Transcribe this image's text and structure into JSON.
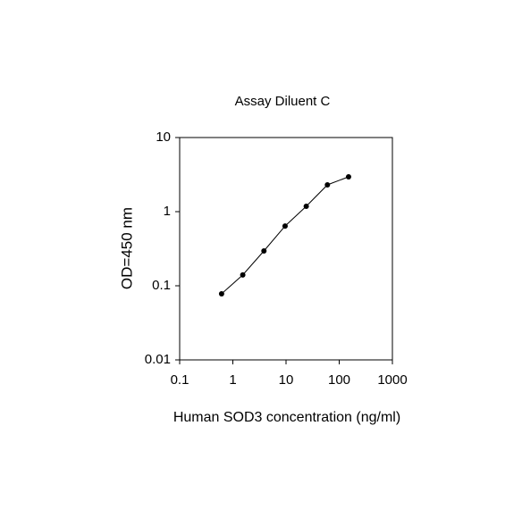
{
  "chart_data": {
    "type": "line",
    "title": "Assay Diluent C",
    "x_label": "Human SOD3 concentration (ng/ml)",
    "y_label": "OD=450 nm",
    "x": [
      0.614,
      1.536,
      3.84,
      9.6,
      24,
      60,
      150
    ],
    "series": [
      {
        "name": "OD",
        "color": "#000000",
        "values": [
          0.078,
          0.14,
          0.295,
          0.64,
          1.18,
          2.3,
          2.95
        ]
      }
    ],
    "xlim": [
      0.1,
      1000
    ],
    "xticks": [
      0.1,
      1,
      10,
      100,
      1000
    ],
    "ylim": [
      0.01,
      10
    ],
    "yticks": [
      0.01,
      0.1,
      1,
      10
    ],
    "xscale": "log",
    "yscale": "log",
    "grid": false
  }
}
